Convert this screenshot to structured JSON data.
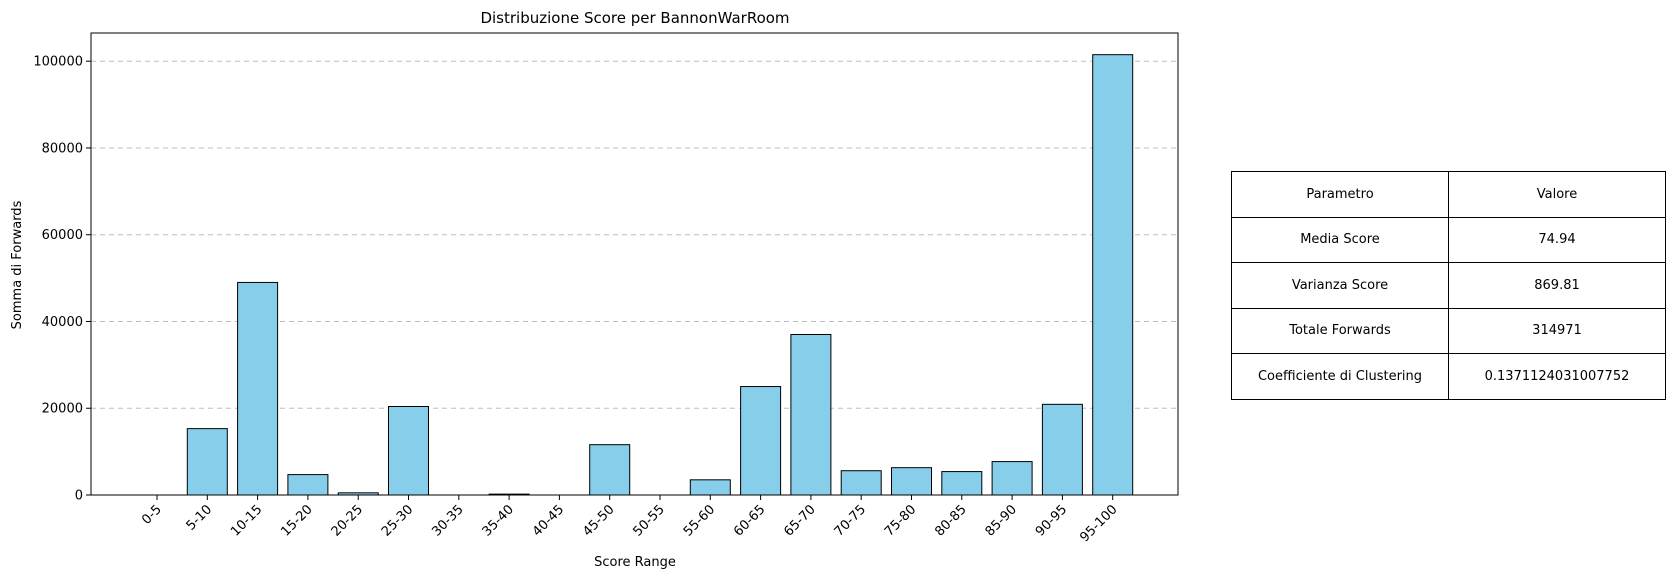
{
  "chart_data": {
    "type": "bar",
    "title": "Distribuzione Score per BannonWarRoom",
    "xlabel": "Score Range",
    "ylabel": "Somma di Forwards",
    "categories": [
      "0-5",
      "5-10",
      "10-15",
      "15-20",
      "20-25",
      "25-30",
      "30-35",
      "35-40",
      "40-45",
      "45-50",
      "50-55",
      "55-60",
      "60-65",
      "65-70",
      "70-75",
      "75-80",
      "80-85",
      "85-90",
      "90-95",
      "95-100"
    ],
    "values": [
      0,
      15300,
      49000,
      4700,
      500,
      20400,
      0,
      200,
      0,
      11600,
      0,
      3500,
      25000,
      37000,
      5600,
      6300,
      5400,
      7700,
      20900,
      101500
    ],
    "ylim": [
      0,
      106500
    ],
    "yticks": [
      0,
      20000,
      40000,
      60000,
      80000,
      100000
    ],
    "ytick_labels": [
      "0",
      "20000",
      "40000",
      "60000",
      "80000",
      "100000"
    ],
    "grid": "y",
    "bar_color": "#87ceeb",
    "edge_color": "#000000"
  },
  "table": {
    "header": [
      "Parametro",
      "Valore"
    ],
    "rows": [
      [
        "Media Score",
        "74.94"
      ],
      [
        "Varianza Score",
        "869.81"
      ],
      [
        "Totale Forwards",
        "314971"
      ],
      [
        "Coefficiente di Clustering",
        "0.1371124031007752"
      ]
    ]
  }
}
